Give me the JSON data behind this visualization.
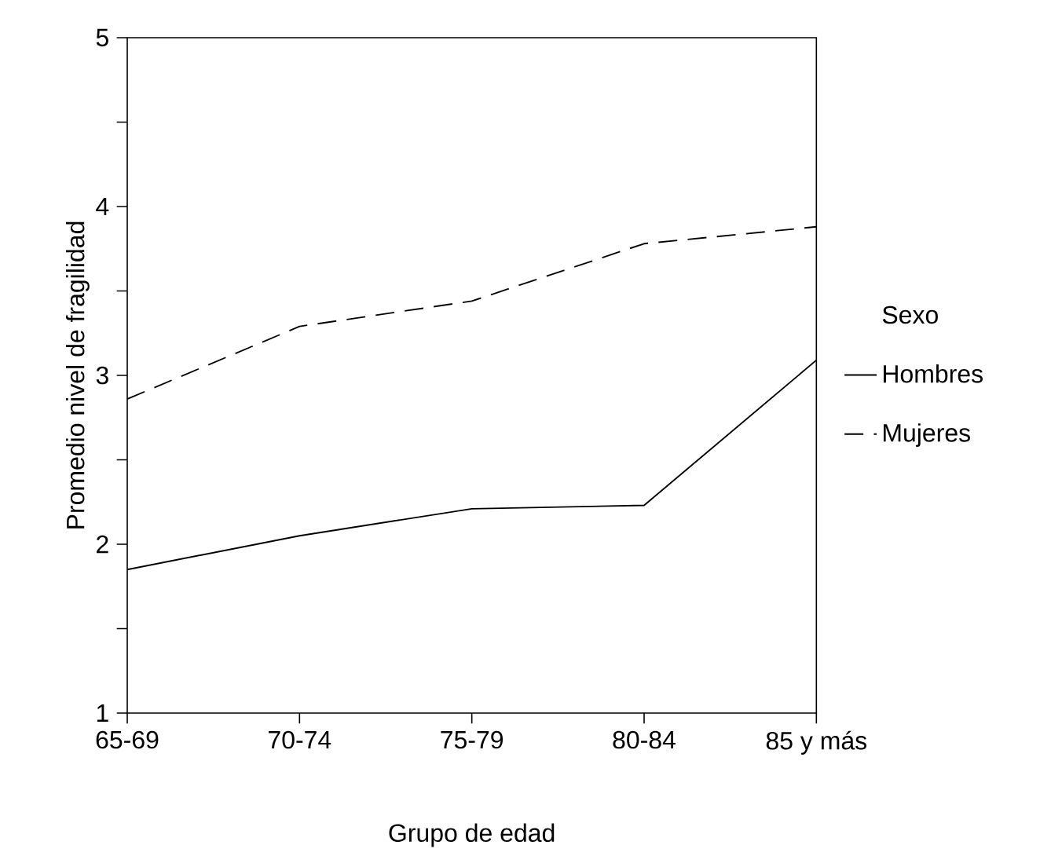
{
  "chart_data": {
    "type": "line",
    "xlabel": "Grupo de edad",
    "ylabel": "Promedio nivel de fragilidad",
    "legend_title": "Sexo",
    "legend": "right",
    "categories": [
      "65-69",
      "70-74",
      "75-79",
      "80-84",
      "85 y más"
    ],
    "ylim": [
      1,
      5
    ],
    "yticks": [
      1,
      {
        "value": 1.5,
        "label": null
      },
      2,
      {
        "value": 2.5,
        "label": null
      },
      3,
      {
        "value": 3.5,
        "label": null
      },
      4,
      {
        "value": 4.5,
        "label": null
      },
      5
    ],
    "series": [
      {
        "name": "Hombres",
        "color": "#000000",
        "line_style": "solid",
        "values": [
          1.85,
          2.05,
          2.21,
          2.23,
          3.09
        ]
      },
      {
        "name": "Mujeres",
        "color": "#000000",
        "line_style": "dashed",
        "values": [
          2.86,
          3.29,
          3.44,
          3.78,
          3.88
        ]
      }
    ]
  }
}
